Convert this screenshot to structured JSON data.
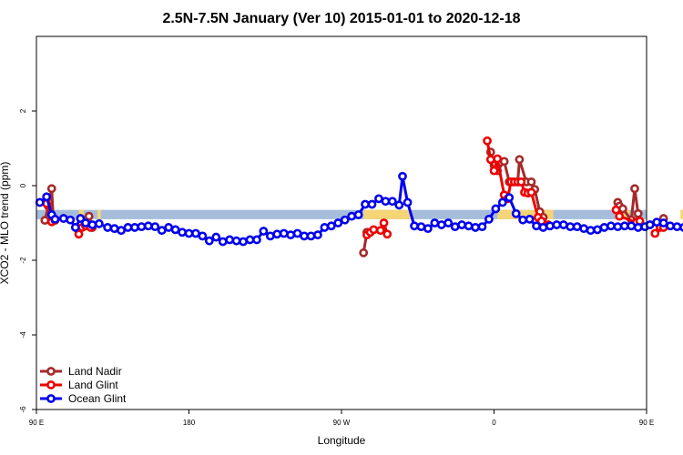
{
  "chart_data": {
    "type": "line",
    "title": "2.5N-7.5N January (Ver 10)   2015-01-01 to 2020-12-18",
    "xlabel": "Longitude",
    "ylabel": "XCO2 - MLO trend (ppm)",
    "xlim": [
      90,
      450
    ],
    "ylim": [
      -6,
      4
    ],
    "x_ticks": [
      {
        "value": 90,
        "label": "90 E"
      },
      {
        "value": 180,
        "label": "180"
      },
      {
        "value": 270,
        "label": "90 W"
      },
      {
        "value": 360,
        "label": "0"
      },
      {
        "value": 450,
        "label": "90 E"
      },
      {
        "value": 540,
        "label": "180"
      }
    ],
    "y_ticks": [
      -6,
      -4,
      -2,
      0,
      2
    ],
    "legend_position": "bottom-left",
    "background_band": {
      "y_range": [
        -0.9,
        -0.65
      ],
      "ocean_color": "#a5bddb",
      "land_color": "#f5d576",
      "land_segments": [
        [
          115,
          118
        ],
        [
          126,
          128
        ],
        [
          283,
          311
        ],
        [
          362,
          395
        ],
        [
          433,
          440
        ],
        [
          470,
          478
        ]
      ]
    },
    "series": [
      {
        "name": "Land Nadir",
        "color": "#a52a2a",
        "segments": [
          [
            [
              95,
              -0.93
            ],
            [
              97,
              -0.55
            ],
            [
              99,
              -0.08
            ],
            [
              100,
              -0.92
            ]
          ],
          [
            [
              121,
              -0.82
            ],
            [
              123,
              -1.12
            ]
          ],
          [
            [
              283,
              -1.8
            ],
            [
              285,
              -1.25
            ]
          ],
          [
            [
              358,
              0.9
            ],
            [
              360,
              0.55
            ],
            [
              362,
              0.4
            ],
            [
              366,
              0.65
            ],
            [
              369,
              0.1
            ],
            [
              371,
              0.1
            ],
            [
              374,
              0.1
            ],
            [
              375,
              0.7
            ],
            [
              379,
              0.1
            ],
            [
              382,
              0.1
            ],
            [
              384,
              -0.1
            ],
            [
              387,
              -0.7
            ],
            [
              389,
              -0.85
            ]
          ],
          [
            [
              433,
              -0.45
            ],
            [
              434,
              -0.55
            ],
            [
              436,
              -0.62
            ],
            [
              441,
              -0.92
            ],
            [
              443,
              -0.08
            ],
            [
              445,
              -0.75
            ]
          ],
          [
            [
              458,
              -1.05
            ],
            [
              460,
              -0.88
            ]
          ]
        ]
      },
      {
        "name": "Land Glint",
        "color": "#ee0000",
        "segments": [
          [
            [
              96,
              -0.48
            ],
            [
              99,
              -0.97
            ],
            [
              101,
              -0.93
            ]
          ],
          [
            [
              115,
              -1.3
            ],
            [
              117,
              -1.12
            ],
            [
              119,
              -1.08
            ],
            [
              122,
              -1.12
            ]
          ],
          [
            [
              285,
              -1.32
            ],
            [
              287,
              -1.25
            ],
            [
              289,
              -1.18
            ],
            [
              293,
              -1.2
            ],
            [
              295,
              -1.0
            ],
            [
              297,
              -1.3
            ]
          ],
          [
            [
              356,
              1.2
            ],
            [
              358,
              0.7
            ],
            [
              360,
              0.4
            ],
            [
              362,
              0.72
            ],
            [
              366,
              -0.25
            ],
            [
              368,
              -0.35
            ],
            [
              370,
              0.1
            ],
            [
              372,
              0.1
            ],
            [
              374,
              0.1
            ],
            [
              376,
              0.1
            ],
            [
              378,
              -0.18
            ],
            [
              380,
              -0.2
            ],
            [
              382,
              -0.18
            ],
            [
              386,
              -0.85
            ],
            [
              388,
              -0.95
            ],
            [
              392,
              -1.05
            ]
          ],
          [
            [
              432,
              -0.65
            ],
            [
              434,
              -0.82
            ],
            [
              444,
              -0.98
            ],
            [
              446,
              -0.95
            ]
          ],
          [
            [
              455,
              -1.28
            ],
            [
              458,
              -1.12
            ],
            [
              460,
              -1.12
            ]
          ]
        ]
      },
      {
        "name": "Ocean Glint",
        "color": "#0000ee",
        "segments": [
          [
            [
              92,
              -0.45
            ],
            [
              96,
              -0.3
            ],
            [
              99,
              -0.78
            ],
            [
              101,
              -0.9
            ],
            [
              106,
              -0.88
            ],
            [
              110,
              -0.92
            ],
            [
              113,
              -1.12
            ],
            [
              116,
              -0.88
            ],
            [
              119,
              -1.0
            ],
            [
              123,
              -1.05
            ],
            [
              127,
              -1.02
            ],
            [
              132,
              -1.12
            ],
            [
              136,
              -1.15
            ],
            [
              140,
              -1.2
            ],
            [
              144,
              -1.12
            ],
            [
              148,
              -1.12
            ],
            [
              152,
              -1.1
            ],
            [
              156,
              -1.08
            ],
            [
              160,
              -1.1
            ],
            [
              164,
              -1.2
            ],
            [
              168,
              -1.12
            ],
            [
              172,
              -1.18
            ],
            [
              176,
              -1.25
            ],
            [
              180,
              -1.28
            ],
            [
              184,
              -1.28
            ],
            [
              188,
              -1.35
            ],
            [
              192,
              -1.48
            ],
            [
              196,
              -1.38
            ],
            [
              200,
              -1.5
            ],
            [
              204,
              -1.45
            ],
            [
              208,
              -1.48
            ],
            [
              212,
              -1.5
            ],
            [
              216,
              -1.45
            ],
            [
              220,
              -1.45
            ],
            [
              224,
              -1.22
            ],
            [
              228,
              -1.35
            ],
            [
              232,
              -1.3
            ],
            [
              236,
              -1.28
            ],
            [
              240,
              -1.32
            ],
            [
              244,
              -1.28
            ],
            [
              248,
              -1.35
            ],
            [
              252,
              -1.35
            ],
            [
              256,
              -1.32
            ],
            [
              260,
              -1.12
            ],
            [
              264,
              -1.08
            ],
            [
              268,
              -1.0
            ],
            [
              272,
              -0.92
            ],
            [
              276,
              -0.82
            ],
            [
              280,
              -0.78
            ],
            [
              284,
              -0.5
            ],
            [
              288,
              -0.5
            ],
            [
              292,
              -0.35
            ],
            [
              296,
              -0.42
            ],
            [
              300,
              -0.42
            ],
            [
              304,
              -0.52
            ],
            [
              306,
              0.25
            ],
            [
              309,
              -0.45
            ],
            [
              313,
              -1.08
            ],
            [
              317,
              -1.1
            ],
            [
              321,
              -1.15
            ],
            [
              325,
              -1.0
            ],
            [
              329,
              -1.05
            ],
            [
              333,
              -1.0
            ],
            [
              337,
              -1.1
            ],
            [
              341,
              -1.05
            ],
            [
              345,
              -1.08
            ],
            [
              349,
              -1.12
            ],
            [
              353,
              -1.1
            ],
            [
              357,
              -0.9
            ],
            [
              361,
              -0.62
            ],
            [
              365,
              -0.45
            ],
            [
              369,
              -0.32
            ],
            [
              373,
              -0.75
            ],
            [
              377,
              -0.92
            ],
            [
              381,
              -0.9
            ],
            [
              385,
              -1.08
            ],
            [
              389,
              -1.12
            ],
            [
              393,
              -1.08
            ],
            [
              397,
              -1.05
            ],
            [
              401,
              -1.05
            ],
            [
              405,
              -1.1
            ],
            [
              409,
              -1.1
            ],
            [
              413,
              -1.15
            ],
            [
              417,
              -1.2
            ],
            [
              421,
              -1.18
            ],
            [
              425,
              -1.12
            ],
            [
              429,
              -1.08
            ],
            [
              433,
              -1.1
            ],
            [
              437,
              -1.08
            ],
            [
              441,
              -1.08
            ],
            [
              445,
              -1.12
            ],
            [
              449,
              -1.1
            ],
            [
              452,
              -1.05
            ],
            [
              456,
              -0.98
            ],
            [
              460,
              -1.0
            ],
            [
              464,
              -1.08
            ],
            [
              468,
              -1.1
            ],
            [
              472,
              -1.12
            ],
            [
              476,
              -1.1
            ],
            [
              480,
              -1.1
            ]
          ]
        ]
      }
    ]
  }
}
